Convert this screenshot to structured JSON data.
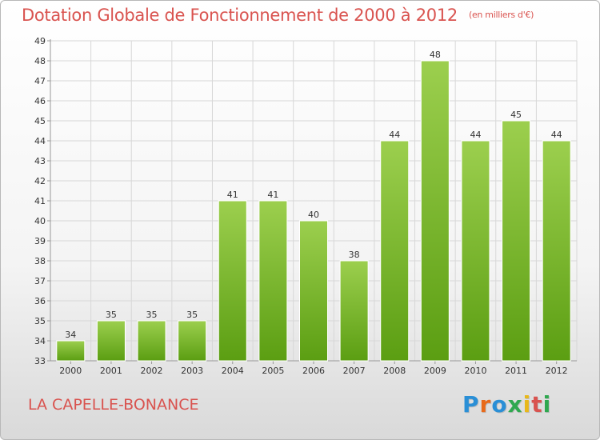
{
  "header": {
    "title": "Dotation Globale de Fonctionnement de 2000 à 2012",
    "unit": "(en milliers d'€)"
  },
  "footer": {
    "commune": "LA CAPELLE-BONANCE",
    "logo": "Proxiti"
  },
  "colors": {
    "bar_top": "#9ccf4e",
    "bar_bottom": "#5b9e12",
    "title": "#d9534f",
    "grid": "#d7d7d7"
  },
  "chart_data": {
    "type": "bar",
    "categories": [
      "2000",
      "2001",
      "2002",
      "2003",
      "2004",
      "2005",
      "2006",
      "2007",
      "2008",
      "2009",
      "2010",
      "2011",
      "2012"
    ],
    "values": [
      34,
      35,
      35,
      35,
      41,
      41,
      40,
      38,
      44,
      48,
      44,
      45,
      44
    ],
    "ylim": [
      33,
      49
    ],
    "yticks": [
      33,
      34,
      35,
      36,
      37,
      38,
      39,
      40,
      41,
      42,
      43,
      44,
      45,
      46,
      47,
      48,
      49
    ],
    "grid": true
  }
}
